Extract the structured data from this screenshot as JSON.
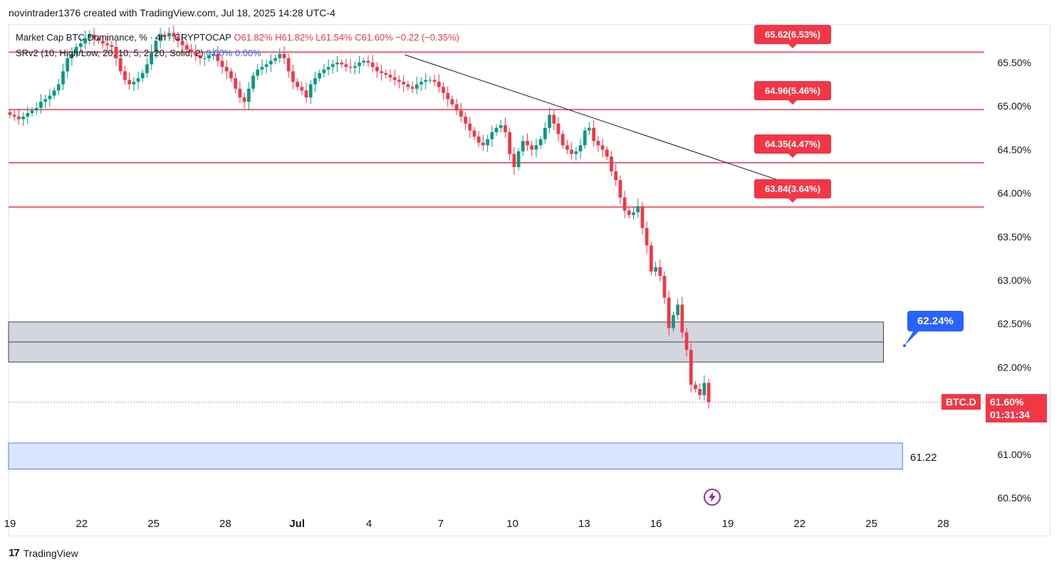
{
  "header": {
    "attribution": "novintrader1376 created with TradingView.com, Jul 18, 2025 14:28 UTC-4"
  },
  "legend": {
    "line1": {
      "name": "Market Cap BTC Dominance, % · 4h · CRYPTOCAP",
      "open": "O61.82%",
      "high": "H61.82%",
      "low": "L61.54%",
      "close": "C61.60%",
      "change": "−0.22 (−0.35%)"
    },
    "line2": {
      "name": "SRv2 (10, High/Low, 20, 10, 5, 2, 20, Solid, 2)",
      "v1": "0.00%",
      "v2": "0.00%"
    }
  },
  "level_badges": [
    {
      "label": "65.62(6.53%)",
      "value": 65.62
    },
    {
      "label": "64.96(5.46%)",
      "value": 64.96
    },
    {
      "label": "64.35(4.47%)",
      "value": 64.35
    },
    {
      "label": "63.84(3.64%)",
      "value": 63.84
    }
  ],
  "current": {
    "symbol": "BTC.D",
    "price": "61.60%",
    "countdown": "01:31:34"
  },
  "target_label": "62.24%",
  "zone_label": "61.22",
  "footer": {
    "brand": "TradingView"
  },
  "colors": {
    "up": "#089981",
    "down": "#f23645",
    "resistance": "#f23645",
    "accent": "#2962ff",
    "zone_gray": "#d1d4dc",
    "zone_blue": "#dbe5ff"
  },
  "icons": {
    "lightning": "lightning-icon"
  },
  "chart_data": {
    "type": "candlestick",
    "symbol": "BTC.D",
    "timeframe": "4h",
    "y_ticks": [
      "65.50%",
      "65.00%",
      "64.50%",
      "64.00%",
      "63.50%",
      "63.00%",
      "62.50%",
      "62.00%",
      "61.00%",
      "60.50%"
    ],
    "ylim": [
      60.27,
      65.93
    ],
    "x_ticks": [
      {
        "label": "19",
        "day": 0
      },
      {
        "label": "22",
        "day": 3
      },
      {
        "label": "25",
        "day": 6
      },
      {
        "label": "28",
        "day": 9
      },
      {
        "label": "Jul",
        "day": 12
      },
      {
        "label": "4",
        "day": 15
      },
      {
        "label": "7",
        "day": 18
      },
      {
        "label": "10",
        "day": 21
      },
      {
        "label": "13",
        "day": 24
      },
      {
        "label": "16",
        "day": 27
      },
      {
        "label": "19",
        "day": 30
      },
      {
        "label": "22",
        "day": 33
      },
      {
        "label": "25",
        "day": 36
      },
      {
        "label": "28",
        "day": 39
      }
    ],
    "resistance_levels": [
      65.62,
      64.96,
      64.35,
      63.84
    ],
    "trendline": [
      {
        "day": 16.5,
        "value": 65.59
      },
      {
        "day": 33.2,
        "value": 64.05
      }
    ],
    "zones": [
      {
        "name": "gray",
        "top": 62.52,
        "mid": 62.29,
        "bottom": 62.06,
        "day_end": 36.5
      },
      {
        "name": "blue",
        "top": 61.13,
        "bottom": 60.83,
        "day_end": 37.3
      }
    ],
    "last_price": 61.6,
    "target_marker": {
      "day": 37.5,
      "value": 62.24
    },
    "closes": [
      64.9,
      64.88,
      64.85,
      64.88,
      64.92,
      64.95,
      64.98,
      65.05,
      65.08,
      65.12,
      65.18,
      65.25,
      65.4,
      65.55,
      65.6,
      65.68,
      65.72,
      65.78,
      65.82,
      65.78,
      65.75,
      65.72,
      65.7,
      65.68,
      65.55,
      65.4,
      65.3,
      65.25,
      65.28,
      65.32,
      65.38,
      65.48,
      65.62,
      65.75,
      65.82,
      65.8,
      65.84,
      65.8,
      65.75,
      65.7,
      65.65,
      65.62,
      65.58,
      65.55,
      65.55,
      65.58,
      65.6,
      65.52,
      65.45,
      65.4,
      65.32,
      65.2,
      65.1,
      65.05,
      65.2,
      65.35,
      65.42,
      65.45,
      65.48,
      65.52,
      65.55,
      65.6,
      65.55,
      65.4,
      65.28,
      65.22,
      65.18,
      65.1,
      65.25,
      65.32,
      65.38,
      65.42,
      65.45,
      65.48,
      65.5,
      65.48,
      65.45,
      65.44,
      65.46,
      65.5,
      65.52,
      65.5,
      65.45,
      65.4,
      65.38,
      65.36,
      65.33,
      65.3,
      65.28,
      65.25,
      65.22,
      65.2,
      65.25,
      65.28,
      65.3,
      65.3,
      65.28,
      65.22,
      65.15,
      65.08,
      65.02,
      64.95,
      64.88,
      64.8,
      64.72,
      64.65,
      64.58,
      64.55,
      64.62,
      64.7,
      64.75,
      64.78,
      64.7,
      64.45,
      64.3,
      64.48,
      64.6,
      64.55,
      64.5,
      64.55,
      64.62,
      64.75,
      64.9,
      64.8,
      64.68,
      64.55,
      64.5,
      64.45,
      64.48,
      64.55,
      64.72,
      64.75,
      64.6,
      64.55,
      64.5,
      64.42,
      64.25,
      64.15,
      63.95,
      63.8,
      63.75,
      63.78,
      63.85,
      63.6,
      63.4,
      63.1,
      63.15,
      63.05,
      62.8,
      62.45,
      62.6,
      62.72,
      62.4,
      62.2,
      61.8,
      61.75,
      61.68,
      61.82,
      61.6
    ]
  }
}
